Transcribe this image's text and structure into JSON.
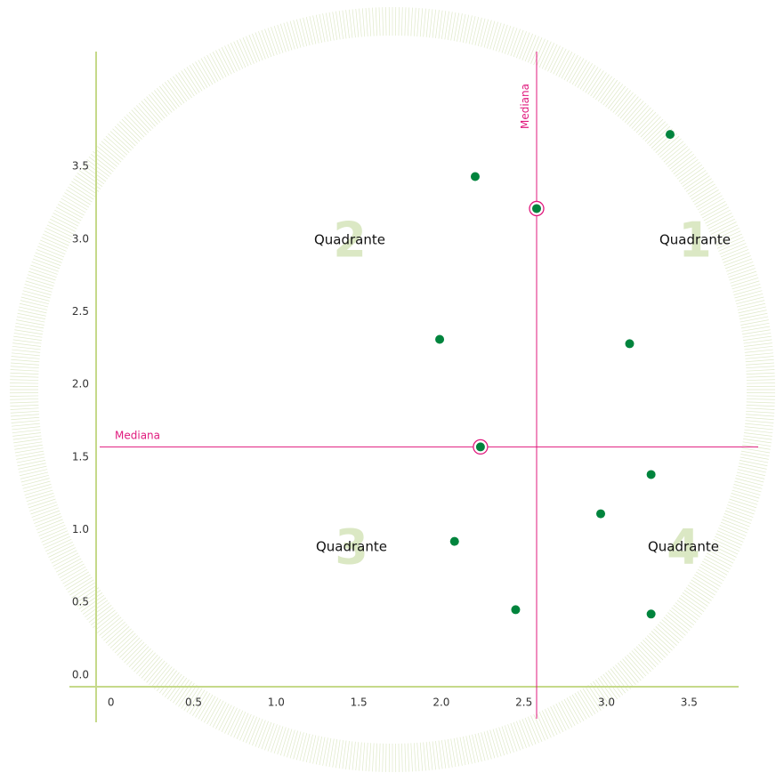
{
  "chart_data": {
    "type": "scatter",
    "xlim": [
      -0.09,
      3.8
    ],
    "ylim": [
      -0.08,
      4.29
    ],
    "xticks": [
      0,
      0.5,
      {
        "value": 1,
        "label": "1.0"
      },
      1.5,
      {
        "value": 2,
        "label": "2.0"
      },
      2.5,
      {
        "value": 3,
        "label": "3.0"
      },
      3.5
    ],
    "yticks": [
      {
        "value": 0,
        "label": "0.0"
      },
      0.5,
      {
        "value": 1,
        "label": "1.0"
      },
      1.5,
      {
        "value": 2,
        "label": "2.0"
      },
      2.5,
      {
        "value": 3,
        "label": "3.0"
      },
      3.5
    ],
    "series": [
      {
        "color": "#00843d",
        "highlight": false,
        "x": [
          3.385,
          2.205,
          1.99,
          3.14,
          3.27,
          2.965,
          2.08,
          2.45,
          3.27
        ],
        "values": [
          3.72,
          3.43,
          2.31,
          2.28,
          1.38,
          1.11,
          0.92,
          0.45,
          0.42
        ]
      },
      {
        "color": "#00843d",
        "highlight": true,
        "x": [
          2.577,
          2.237
        ],
        "values": [
          3.21,
          1.57
        ]
      }
    ],
    "median_x": {
      "value": 2.577,
      "label": "Mediana"
    },
    "median_y": {
      "value": 1.57,
      "label": "Mediana"
    },
    "median_color": "#e0197d",
    "axis_color": "#c5d98a",
    "quadrants": [
      {
        "number": "1",
        "label": "Quadrante"
      },
      {
        "number": "2",
        "label": "Quadrante"
      },
      {
        "number": "3",
        "label": "Quadrante"
      },
      {
        "number": "4",
        "label": "Quadrante"
      }
    ]
  }
}
